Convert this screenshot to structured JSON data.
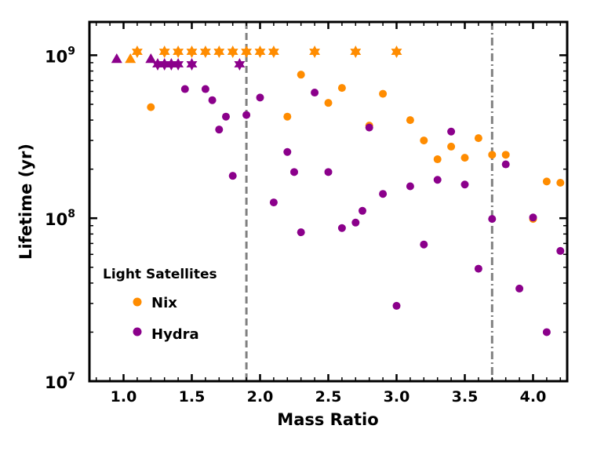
{
  "chart_data": {
    "type": "scatter",
    "xlabel": "Mass Ratio",
    "ylabel": "Lifetime (yr)",
    "xlim": [
      0.75,
      4.25
    ],
    "ylim": [
      10000000,
      1600000000
    ],
    "y_scale": "log",
    "x_ticks": [
      {
        "value": 1.0,
        "label": "1.0"
      },
      {
        "value": 1.5,
        "label": "1.5"
      },
      {
        "value": 2.0,
        "label": "2.0"
      },
      {
        "value": 2.5,
        "label": "2.5"
      },
      {
        "value": 3.0,
        "label": "3.0"
      },
      {
        "value": 3.5,
        "label": "3.5"
      },
      {
        "value": 4.0,
        "label": "4.0"
      }
    ],
    "y_ticks": [
      {
        "value": 10000000,
        "base": "10",
        "exp": "7"
      },
      {
        "value": 100000000,
        "base": "10",
        "exp": "8"
      },
      {
        "value": 1000000000,
        "base": "10",
        "exp": "9"
      }
    ],
    "vlines": [
      {
        "x": 1.9,
        "style": "dashed",
        "color": "#808080"
      },
      {
        "x": 3.7,
        "style": "dashdot",
        "color": "#808080"
      }
    ],
    "legend": {
      "title": "Light Satellites",
      "position": "lower-left",
      "entries": [
        {
          "label": "Nix",
          "color": "#ff8c00"
        },
        {
          "label": "Hydra",
          "color": "#8b008b"
        }
      ]
    },
    "series": [
      {
        "name": "Nix",
        "color": "#ff8c00",
        "points": [
          {
            "x": 1.2,
            "y": 480000000,
            "m": "circle"
          },
          {
            "x": 2.2,
            "y": 420000000,
            "m": "circle"
          },
          {
            "x": 2.3,
            "y": 760000000,
            "m": "circle"
          },
          {
            "x": 2.5,
            "y": 510000000,
            "m": "circle"
          },
          {
            "x": 2.6,
            "y": 630000000,
            "m": "circle"
          },
          {
            "x": 2.8,
            "y": 370000000,
            "m": "circle"
          },
          {
            "x": 2.9,
            "y": 580000000,
            "m": "circle"
          },
          {
            "x": 3.1,
            "y": 400000000,
            "m": "circle"
          },
          {
            "x": 3.2,
            "y": 300000000,
            "m": "circle"
          },
          {
            "x": 3.3,
            "y": 230000000,
            "m": "circle"
          },
          {
            "x": 3.4,
            "y": 275000000,
            "m": "circle"
          },
          {
            "x": 3.5,
            "y": 235000000,
            "m": "circle"
          },
          {
            "x": 3.6,
            "y": 310000000,
            "m": "circle"
          },
          {
            "x": 3.7,
            "y": 245000000,
            "m": "circle"
          },
          {
            "x": 3.8,
            "y": 245000000,
            "m": "circle"
          },
          {
            "x": 4.0,
            "y": 99000000,
            "m": "circle"
          },
          {
            "x": 4.1,
            "y": 168000000,
            "m": "circle"
          },
          {
            "x": 4.2,
            "y": 165000000,
            "m": "circle"
          },
          {
            "x": 1.05,
            "y": 950000000,
            "m": "triangle"
          },
          {
            "x": 1.1,
            "y": 1050000000,
            "m": "star"
          },
          {
            "x": 1.3,
            "y": 1050000000,
            "m": "star"
          },
          {
            "x": 1.4,
            "y": 1050000000,
            "m": "star"
          },
          {
            "x": 1.5,
            "y": 1050000000,
            "m": "star"
          },
          {
            "x": 1.6,
            "y": 1050000000,
            "m": "star"
          },
          {
            "x": 1.7,
            "y": 1050000000,
            "m": "star"
          },
          {
            "x": 1.8,
            "y": 1050000000,
            "m": "star"
          },
          {
            "x": 1.9,
            "y": 1050000000,
            "m": "star"
          },
          {
            "x": 2.0,
            "y": 1050000000,
            "m": "star"
          },
          {
            "x": 2.1,
            "y": 1050000000,
            "m": "star"
          },
          {
            "x": 2.4,
            "y": 1050000000,
            "m": "star"
          },
          {
            "x": 2.7,
            "y": 1050000000,
            "m": "star"
          },
          {
            "x": 3.0,
            "y": 1050000000,
            "m": "star"
          }
        ]
      },
      {
        "name": "Hydra",
        "color": "#8b008b",
        "points": [
          {
            "x": 1.45,
            "y": 620000000,
            "m": "circle"
          },
          {
            "x": 1.6,
            "y": 620000000,
            "m": "circle"
          },
          {
            "x": 1.65,
            "y": 530000000,
            "m": "circle"
          },
          {
            "x": 1.7,
            "y": 350000000,
            "m": "circle"
          },
          {
            "x": 1.75,
            "y": 420000000,
            "m": "circle"
          },
          {
            "x": 1.8,
            "y": 182000000,
            "m": "circle"
          },
          {
            "x": 1.9,
            "y": 430000000,
            "m": "circle"
          },
          {
            "x": 2.0,
            "y": 550000000,
            "m": "circle"
          },
          {
            "x": 2.1,
            "y": 125000000,
            "m": "circle"
          },
          {
            "x": 2.2,
            "y": 255000000,
            "m": "circle"
          },
          {
            "x": 2.25,
            "y": 192000000,
            "m": "circle"
          },
          {
            "x": 2.3,
            "y": 82000000,
            "m": "circle"
          },
          {
            "x": 2.4,
            "y": 590000000,
            "m": "circle"
          },
          {
            "x": 2.5,
            "y": 192000000,
            "m": "circle"
          },
          {
            "x": 2.6,
            "y": 87000000,
            "m": "circle"
          },
          {
            "x": 2.7,
            "y": 94000000,
            "m": "circle"
          },
          {
            "x": 2.75,
            "y": 111000000,
            "m": "circle"
          },
          {
            "x": 2.8,
            "y": 360000000,
            "m": "circle"
          },
          {
            "x": 2.9,
            "y": 141000000,
            "m": "circle"
          },
          {
            "x": 3.0,
            "y": 29000000,
            "m": "circle"
          },
          {
            "x": 3.1,
            "y": 157000000,
            "m": "circle"
          },
          {
            "x": 3.2,
            "y": 69000000,
            "m": "circle"
          },
          {
            "x": 3.3,
            "y": 172000000,
            "m": "circle"
          },
          {
            "x": 3.4,
            "y": 340000000,
            "m": "circle"
          },
          {
            "x": 3.5,
            "y": 161000000,
            "m": "circle"
          },
          {
            "x": 3.6,
            "y": 49000000,
            "m": "circle"
          },
          {
            "x": 3.7,
            "y": 99000000,
            "m": "circle"
          },
          {
            "x": 3.8,
            "y": 214000000,
            "m": "circle"
          },
          {
            "x": 3.9,
            "y": 37000000,
            "m": "circle"
          },
          {
            "x": 4.0,
            "y": 101000000,
            "m": "circle"
          },
          {
            "x": 4.1,
            "y": 20000000,
            "m": "circle"
          },
          {
            "x": 4.2,
            "y": 63000000,
            "m": "circle"
          },
          {
            "x": 0.95,
            "y": 950000000,
            "m": "triangle"
          },
          {
            "x": 1.2,
            "y": 950000000,
            "m": "triangle"
          },
          {
            "x": 1.25,
            "y": 880000000,
            "m": "star"
          },
          {
            "x": 1.3,
            "y": 880000000,
            "m": "star"
          },
          {
            "x": 1.35,
            "y": 880000000,
            "m": "star"
          },
          {
            "x": 1.4,
            "y": 880000000,
            "m": "star"
          },
          {
            "x": 1.5,
            "y": 880000000,
            "m": "star"
          },
          {
            "x": 1.85,
            "y": 880000000,
            "m": "star"
          }
        ]
      }
    ]
  }
}
